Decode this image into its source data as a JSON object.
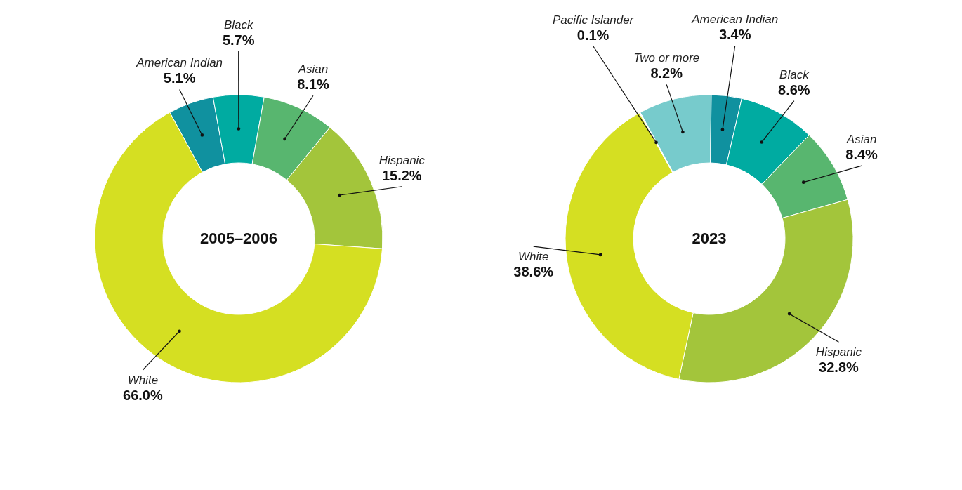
{
  "chart_data": [
    {
      "type": "donut",
      "title": "2005–2006",
      "categories": [
        "American Indian",
        "Black",
        "Asian",
        "Hispanic",
        "White"
      ],
      "values": [
        5.1,
        5.7,
        8.1,
        15.2,
        66.0
      ],
      "value_labels": [
        "5.1%",
        "5.7%",
        "8.1%",
        "15.2%",
        "66.0%"
      ],
      "colors": [
        "#10919f",
        "#00aba1",
        "#58b66f",
        "#a3c53b",
        "#d5df22"
      ]
    },
    {
      "type": "donut",
      "title": "2023",
      "categories": [
        "Two or more",
        "American Indian",
        "Black",
        "Asian",
        "Hispanic",
        "White",
        "Pacific Islander"
      ],
      "values": [
        8.2,
        3.4,
        8.6,
        8.4,
        32.8,
        38.6,
        0.1
      ],
      "value_labels": [
        "8.2%",
        "3.4%",
        "8.6%",
        "8.4%",
        "32.8%",
        "38.6%",
        "0.1%"
      ],
      "colors": [
        "#77cbcc",
        "#10919f",
        "#00aba1",
        "#58b66f",
        "#a3c53b",
        "#d5df22",
        "#ffffff"
      ]
    }
  ]
}
